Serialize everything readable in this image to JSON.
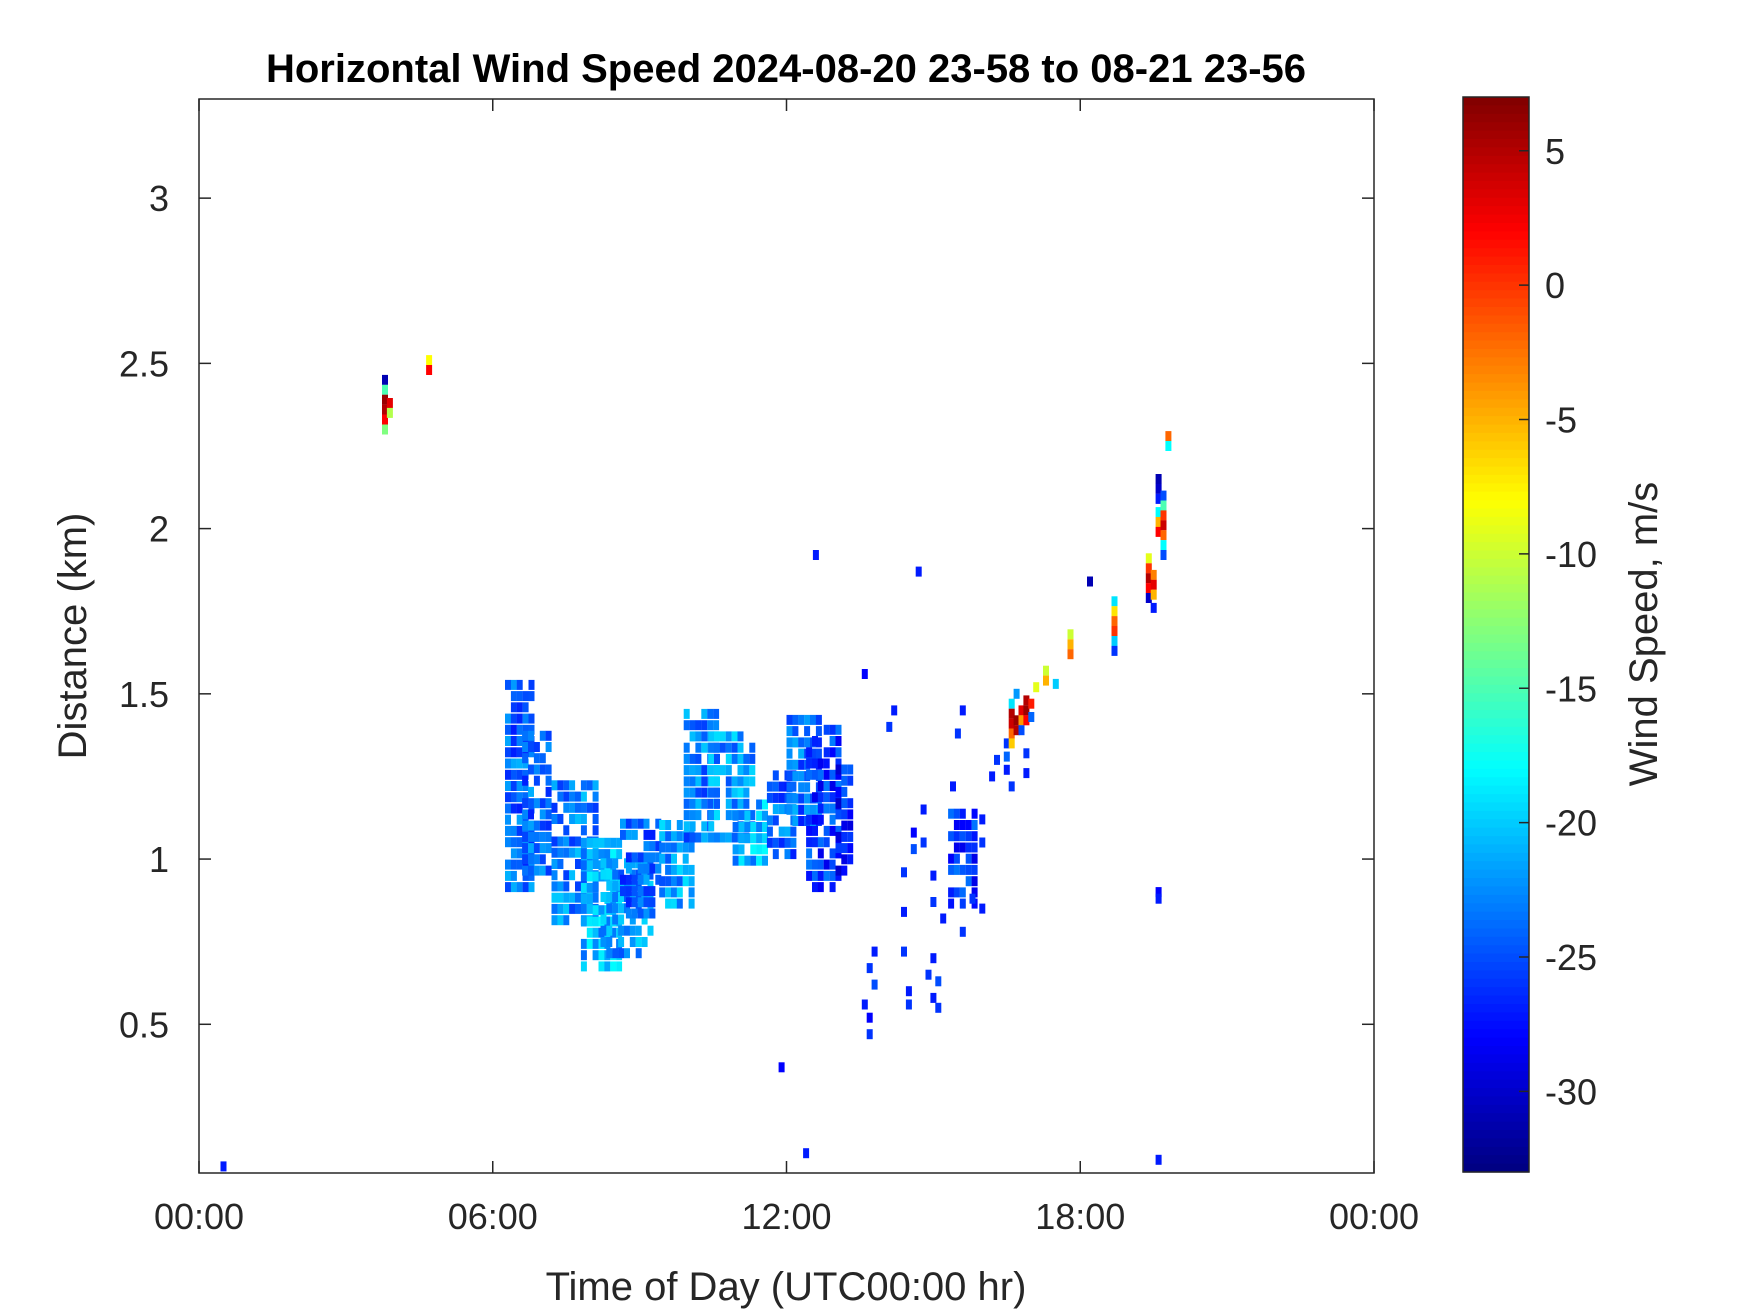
{
  "chart_data": {
    "type": "heatmap",
    "title": "Horizontal Wind Speed 2024-08-20 23-58 to 08-21 23-56",
    "xlabel": "Time of Day (UTC00:00 hr)",
    "ylabel": "Distance (km)",
    "xlim": [
      0,
      24
    ],
    "ylim": [
      0.05,
      3.3
    ],
    "xticks": [
      0,
      6,
      12,
      18,
      24
    ],
    "xtick_labels": [
      "00:00",
      "06:00",
      "12:00",
      "18:00",
      "00:00"
    ],
    "yticks": [
      0.5,
      1,
      1.5,
      2,
      2.5,
      3
    ],
    "ytick_labels": [
      "0.5",
      "1",
      "1.5",
      "2",
      "2.5",
      "3"
    ],
    "grid": false,
    "colorbar": {
      "label": "Wind Speed, m/s",
      "colormap": "jet",
      "range": [
        -33,
        7
      ],
      "ticks": [
        5,
        0,
        -5,
        -10,
        -15,
        -20,
        -25,
        -30
      ],
      "tick_labels": [
        "5",
        "0",
        "-5",
        "-10",
        "-15",
        "-20",
        "-25",
        "-30"
      ]
    },
    "cells": [
      {
        "x": 0.5,
        "y": 0.07,
        "v": -27
      },
      {
        "x": 3.8,
        "y": 2.45,
        "v": -31
      },
      {
        "x": 3.8,
        "y": 2.42,
        "v": -15
      },
      {
        "x": 3.8,
        "y": 2.39,
        "v": 6
      },
      {
        "x": 3.8,
        "y": 2.36,
        "v": 5
      },
      {
        "x": 3.8,
        "y": 2.33,
        "v": 2
      },
      {
        "x": 3.8,
        "y": 2.3,
        "v": -13
      },
      {
        "x": 3.9,
        "y": 2.38,
        "v": 3
      },
      {
        "x": 3.9,
        "y": 2.35,
        "v": -11
      },
      {
        "x": 4.7,
        "y": 2.51,
        "v": -8
      },
      {
        "x": 4.7,
        "y": 2.48,
        "v": 2
      },
      {
        "x": 12.6,
        "y": 1.92,
        "v": -27
      },
      {
        "x": 14.7,
        "y": 1.87,
        "v": -27
      },
      {
        "x": 13.6,
        "y": 1.56,
        "v": -28
      },
      {
        "x": 14.2,
        "y": 1.45,
        "v": -27
      },
      {
        "x": 14.1,
        "y": 1.4,
        "v": -26
      },
      {
        "x": 15.6,
        "y": 1.45,
        "v": -27
      },
      {
        "x": 15.5,
        "y": 1.38,
        "v": -26
      },
      {
        "x": 15.4,
        "y": 1.22,
        "v": -27
      },
      {
        "x": 14.8,
        "y": 1.15,
        "v": -27
      },
      {
        "x": 14.8,
        "y": 1.05,
        "v": -26
      },
      {
        "x": 14.6,
        "y": 1.08,
        "v": -28
      },
      {
        "x": 14.6,
        "y": 1.03,
        "v": -25
      },
      {
        "x": 14.4,
        "y": 0.96,
        "v": -26
      },
      {
        "x": 14.4,
        "y": 0.84,
        "v": -27
      },
      {
        "x": 14.4,
        "y": 0.72,
        "v": -26
      },
      {
        "x": 14.5,
        "y": 0.6,
        "v": -27
      },
      {
        "x": 14.5,
        "y": 0.56,
        "v": -26
      },
      {
        "x": 13.8,
        "y": 0.72,
        "v": -27
      },
      {
        "x": 13.7,
        "y": 0.67,
        "v": -26
      },
      {
        "x": 13.8,
        "y": 0.62,
        "v": -25
      },
      {
        "x": 13.6,
        "y": 0.56,
        "v": -27
      },
      {
        "x": 13.7,
        "y": 0.52,
        "v": -28
      },
      {
        "x": 13.7,
        "y": 0.47,
        "v": -26
      },
      {
        "x": 15.0,
        "y": 0.95,
        "v": -27
      },
      {
        "x": 15.0,
        "y": 0.87,
        "v": -26
      },
      {
        "x": 15.0,
        "y": 0.7,
        "v": -27
      },
      {
        "x": 14.9,
        "y": 0.65,
        "v": -26
      },
      {
        "x": 15.1,
        "y": 0.63,
        "v": -25
      },
      {
        "x": 15.0,
        "y": 0.58,
        "v": -27
      },
      {
        "x": 15.1,
        "y": 0.55,
        "v": -26
      },
      {
        "x": 15.2,
        "y": 0.82,
        "v": -27
      },
      {
        "x": 15.6,
        "y": 0.78,
        "v": -26
      },
      {
        "x": 15.8,
        "y": 0.88,
        "v": -26
      },
      {
        "x": 16.0,
        "y": 1.12,
        "v": -27
      },
      {
        "x": 16.0,
        "y": 1.05,
        "v": -26
      },
      {
        "x": 16.0,
        "y": 0.85,
        "v": -27
      },
      {
        "x": 16.2,
        "y": 1.25,
        "v": -27
      },
      {
        "x": 16.3,
        "y": 1.3,
        "v": -26
      },
      {
        "x": 11.9,
        "y": 0.37,
        "v": -28
      },
      {
        "x": 12.4,
        "y": 0.11,
        "v": -27
      },
      {
        "x": 18.2,
        "y": 1.84,
        "v": -31
      },
      {
        "x": 19.6,
        "y": 0.9,
        "v": -28
      },
      {
        "x": 19.6,
        "y": 0.88,
        "v": -27
      },
      {
        "x": 19.6,
        "y": 0.09,
        "v": -27
      },
      {
        "x": 16.5,
        "y": 1.35,
        "v": -26
      },
      {
        "x": 16.5,
        "y": 1.31,
        "v": -24
      },
      {
        "x": 16.5,
        "y": 1.27,
        "v": -27
      },
      {
        "x": 16.6,
        "y": 1.47,
        "v": -19
      },
      {
        "x": 16.6,
        "y": 1.44,
        "v": 5
      },
      {
        "x": 16.6,
        "y": 1.41,
        "v": 4
      },
      {
        "x": 16.6,
        "y": 1.38,
        "v": -2
      },
      {
        "x": 16.6,
        "y": 1.35,
        "v": -6
      },
      {
        "x": 16.6,
        "y": 1.22,
        "v": -26
      },
      {
        "x": 16.7,
        "y": 1.42,
        "v": 6
      },
      {
        "x": 16.7,
        "y": 1.39,
        "v": 5
      },
      {
        "x": 16.7,
        "y": 1.5,
        "v": -22
      },
      {
        "x": 16.8,
        "y": 1.45,
        "v": 3
      },
      {
        "x": 16.8,
        "y": 1.42,
        "v": -4
      },
      {
        "x": 16.8,
        "y": 1.39,
        "v": -25
      },
      {
        "x": 16.9,
        "y": 1.48,
        "v": 5
      },
      {
        "x": 16.9,
        "y": 1.45,
        "v": 6
      },
      {
        "x": 16.9,
        "y": 1.42,
        "v": 2
      },
      {
        "x": 16.9,
        "y": 1.32,
        "v": -26
      },
      {
        "x": 16.9,
        "y": 1.26,
        "v": -27
      },
      {
        "x": 17.0,
        "y": 1.47,
        "v": 1
      },
      {
        "x": 17.0,
        "y": 1.43,
        "v": -24
      },
      {
        "x": 17.1,
        "y": 1.52,
        "v": -9
      },
      {
        "x": 17.3,
        "y": 1.57,
        "v": -10
      },
      {
        "x": 17.3,
        "y": 1.54,
        "v": -5
      },
      {
        "x": 17.5,
        "y": 1.53,
        "v": -20
      },
      {
        "x": 17.8,
        "y": 1.68,
        "v": -10
      },
      {
        "x": 17.8,
        "y": 1.65,
        "v": -5
      },
      {
        "x": 17.8,
        "y": 1.62,
        "v": -2
      },
      {
        "x": 18.7,
        "y": 1.78,
        "v": -19
      },
      {
        "x": 18.7,
        "y": 1.75,
        "v": -7
      },
      {
        "x": 18.7,
        "y": 1.72,
        "v": -2
      },
      {
        "x": 18.7,
        "y": 1.69,
        "v": 0
      },
      {
        "x": 18.7,
        "y": 1.66,
        "v": -20
      },
      {
        "x": 18.7,
        "y": 1.63,
        "v": -26
      },
      {
        "x": 19.4,
        "y": 1.91,
        "v": -9
      },
      {
        "x": 19.4,
        "y": 1.88,
        "v": 0
      },
      {
        "x": 19.4,
        "y": 1.85,
        "v": 5
      },
      {
        "x": 19.4,
        "y": 1.82,
        "v": 2
      },
      {
        "x": 19.4,
        "y": 1.79,
        "v": -30
      },
      {
        "x": 19.5,
        "y": 1.86,
        "v": -3
      },
      {
        "x": 19.5,
        "y": 1.83,
        "v": 3
      },
      {
        "x": 19.5,
        "y": 1.8,
        "v": -5
      },
      {
        "x": 19.5,
        "y": 1.76,
        "v": -27
      },
      {
        "x": 19.6,
        "y": 2.15,
        "v": -31
      },
      {
        "x": 19.6,
        "y": 2.12,
        "v": -30
      },
      {
        "x": 19.6,
        "y": 2.09,
        "v": -27
      },
      {
        "x": 19.6,
        "y": 2.05,
        "v": -18
      },
      {
        "x": 19.6,
        "y": 2.02,
        "v": -5
      },
      {
        "x": 19.6,
        "y": 1.99,
        "v": 2
      },
      {
        "x": 19.7,
        "y": 2.1,
        "v": -25
      },
      {
        "x": 19.7,
        "y": 2.07,
        "v": -15
      },
      {
        "x": 19.7,
        "y": 2.04,
        "v": 0
      },
      {
        "x": 19.7,
        "y": 2.01,
        "v": 4
      },
      {
        "x": 19.7,
        "y": 1.98,
        "v": -2
      },
      {
        "x": 19.7,
        "y": 1.95,
        "v": -18
      },
      {
        "x": 19.7,
        "y": 1.92,
        "v": -25
      },
      {
        "x": 19.8,
        "y": 2.28,
        "v": -2
      },
      {
        "x": 19.8,
        "y": 2.25,
        "v": -18
      }
    ],
    "regions": [
      {
        "x0": 6.25,
        "x1": 6.75,
        "y0": 0.9,
        "y1": 1.53,
        "v": -24
      },
      {
        "x0": 6.6,
        "x1": 7.2,
        "y0": 0.95,
        "y1": 1.38,
        "v": -24
      },
      {
        "x0": 7.2,
        "x1": 8.1,
        "y0": 0.8,
        "y1": 1.22,
        "v": -23
      },
      {
        "x0": 7.8,
        "x1": 8.6,
        "y0": 0.66,
        "y1": 1.05,
        "v": -21
      },
      {
        "x0": 8.2,
        "x1": 9.2,
        "y0": 0.7,
        "y1": 1.0,
        "v": -22
      },
      {
        "x0": 8.6,
        "x1": 9.4,
        "y0": 0.82,
        "y1": 1.11,
        "v": -24
      },
      {
        "x0": 9.4,
        "x1": 10.0,
        "y0": 0.85,
        "y1": 1.12,
        "v": -22
      },
      {
        "x0": 9.9,
        "x1": 10.6,
        "y0": 1.05,
        "y1": 1.45,
        "v": -23
      },
      {
        "x0": 10.4,
        "x1": 11.3,
        "y0": 1.05,
        "y1": 1.38,
        "v": -22
      },
      {
        "x0": 10.9,
        "x1": 11.6,
        "y0": 0.98,
        "y1": 1.18,
        "v": -21
      },
      {
        "x0": 11.6,
        "x1": 12.1,
        "y0": 1.0,
        "y1": 1.25,
        "v": -24
      },
      {
        "x0": 12.0,
        "x1": 12.6,
        "y0": 1.1,
        "y1": 1.42,
        "v": -24
      },
      {
        "x0": 12.4,
        "x1": 13.05,
        "y0": 0.9,
        "y1": 1.38,
        "v": -26
      },
      {
        "x0": 13.0,
        "x1": 13.3,
        "y0": 0.95,
        "y1": 1.28,
        "v": -27
      },
      {
        "x0": 15.3,
        "x1": 15.85,
        "y0": 0.85,
        "y1": 1.15,
        "v": -26
      }
    ]
  }
}
